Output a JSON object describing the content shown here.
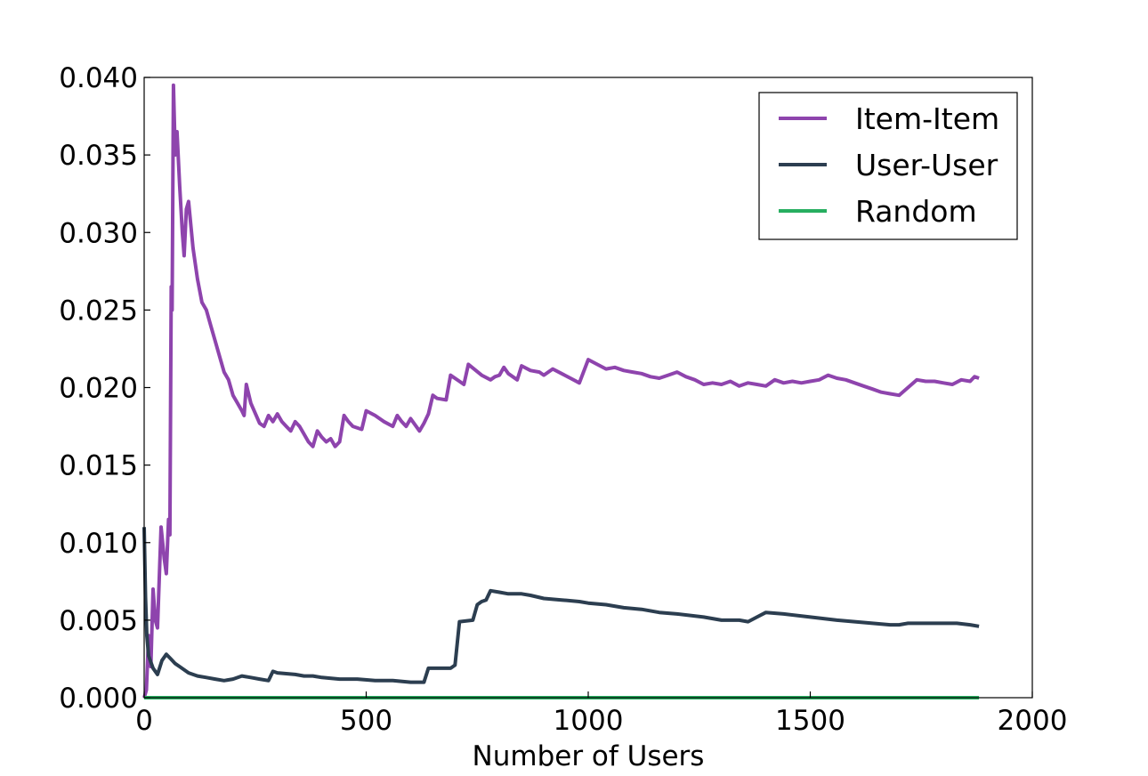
{
  "chart_data": {
    "type": "line",
    "title": "",
    "xlabel": "Number of Users",
    "ylabel": "",
    "xlim": [
      0,
      2000
    ],
    "ylim": [
      0,
      0.04
    ],
    "x_ticks": [
      "0",
      "500",
      "1000",
      "1500",
      "2000"
    ],
    "y_ticks": [
      "0.000",
      "0.005",
      "0.010",
      "0.015",
      "0.020",
      "0.025",
      "0.030",
      "0.035",
      "0.040"
    ],
    "grid": false,
    "legend_position": "top-right",
    "series": [
      {
        "name": "Item-Item",
        "color": "#8e44ad",
        "points": [
          [
            0,
            0
          ],
          [
            5,
            0.0005
          ],
          [
            10,
            0.004
          ],
          [
            15,
            0.002
          ],
          [
            20,
            0.007
          ],
          [
            25,
            0.005
          ],
          [
            30,
            0.0045
          ],
          [
            38,
            0.011
          ],
          [
            45,
            0.009
          ],
          [
            50,
            0.008
          ],
          [
            55,
            0.0115
          ],
          [
            58,
            0.0105
          ],
          [
            61,
            0.0265
          ],
          [
            63,
            0.025
          ],
          [
            66,
            0.0395
          ],
          [
            70,
            0.035
          ],
          [
            74,
            0.0365
          ],
          [
            80,
            0.033
          ],
          [
            86,
            0.03
          ],
          [
            90,
            0.0285
          ],
          [
            95,
            0.0315
          ],
          [
            100,
            0.032
          ],
          [
            110,
            0.029
          ],
          [
            120,
            0.027
          ],
          [
            130,
            0.0255
          ],
          [
            140,
            0.025
          ],
          [
            150,
            0.024
          ],
          [
            160,
            0.023
          ],
          [
            170,
            0.022
          ],
          [
            180,
            0.021
          ],
          [
            190,
            0.0205
          ],
          [
            200,
            0.0195
          ],
          [
            210,
            0.019
          ],
          [
            220,
            0.0185
          ],
          [
            225,
            0.0182
          ],
          [
            230,
            0.0202
          ],
          [
            240,
            0.019
          ],
          [
            260,
            0.0177
          ],
          [
            270,
            0.0175
          ],
          [
            280,
            0.0182
          ],
          [
            290,
            0.0178
          ],
          [
            300,
            0.0183
          ],
          [
            310,
            0.0178
          ],
          [
            320,
            0.0175
          ],
          [
            330,
            0.0172
          ],
          [
            340,
            0.0178
          ],
          [
            350,
            0.0175
          ],
          [
            360,
            0.017
          ],
          [
            370,
            0.0165
          ],
          [
            380,
            0.0162
          ],
          [
            390,
            0.0172
          ],
          [
            400,
            0.0168
          ],
          [
            410,
            0.0165
          ],
          [
            420,
            0.0167
          ],
          [
            430,
            0.0162
          ],
          [
            440,
            0.0165
          ],
          [
            450,
            0.0182
          ],
          [
            460,
            0.0178
          ],
          [
            470,
            0.0175
          ],
          [
            490,
            0.0173
          ],
          [
            500,
            0.0185
          ],
          [
            520,
            0.0182
          ],
          [
            540,
            0.0178
          ],
          [
            560,
            0.0175
          ],
          [
            570,
            0.0182
          ],
          [
            580,
            0.0178
          ],
          [
            590,
            0.0175
          ],
          [
            600,
            0.018
          ],
          [
            620,
            0.0172
          ],
          [
            630,
            0.0177
          ],
          [
            640,
            0.0183
          ],
          [
            650,
            0.0195
          ],
          [
            660,
            0.0193
          ],
          [
            680,
            0.0192
          ],
          [
            690,
            0.0208
          ],
          [
            710,
            0.0204
          ],
          [
            720,
            0.0202
          ],
          [
            730,
            0.0215
          ],
          [
            760,
            0.0208
          ],
          [
            780,
            0.0205
          ],
          [
            790,
            0.0207
          ],
          [
            800,
            0.0208
          ],
          [
            810,
            0.0213
          ],
          [
            820,
            0.0209
          ],
          [
            840,
            0.0205
          ],
          [
            850,
            0.0214
          ],
          [
            870,
            0.0211
          ],
          [
            890,
            0.021
          ],
          [
            900,
            0.0208
          ],
          [
            920,
            0.0212
          ],
          [
            940,
            0.0209
          ],
          [
            960,
            0.0206
          ],
          [
            980,
            0.0203
          ],
          [
            1000,
            0.0218
          ],
          [
            1020,
            0.0215
          ],
          [
            1040,
            0.0212
          ],
          [
            1060,
            0.0213
          ],
          [
            1080,
            0.0211
          ],
          [
            1100,
            0.021
          ],
          [
            1120,
            0.0209
          ],
          [
            1140,
            0.0207
          ],
          [
            1160,
            0.0206
          ],
          [
            1180,
            0.0208
          ],
          [
            1200,
            0.021
          ],
          [
            1220,
            0.0207
          ],
          [
            1240,
            0.0205
          ],
          [
            1260,
            0.0202
          ],
          [
            1280,
            0.0203
          ],
          [
            1300,
            0.0202
          ],
          [
            1320,
            0.0204
          ],
          [
            1340,
            0.0201
          ],
          [
            1360,
            0.0203
          ],
          [
            1380,
            0.0202
          ],
          [
            1400,
            0.0201
          ],
          [
            1420,
            0.0205
          ],
          [
            1440,
            0.0203
          ],
          [
            1460,
            0.0204
          ],
          [
            1480,
            0.0203
          ],
          [
            1500,
            0.0204
          ],
          [
            1520,
            0.0205
          ],
          [
            1540,
            0.0208
          ],
          [
            1560,
            0.0206
          ],
          [
            1580,
            0.0205
          ],
          [
            1600,
            0.0203
          ],
          [
            1620,
            0.0201
          ],
          [
            1640,
            0.0199
          ],
          [
            1660,
            0.0197
          ],
          [
            1680,
            0.0196
          ],
          [
            1700,
            0.0195
          ],
          [
            1720,
            0.02
          ],
          [
            1740,
            0.0205
          ],
          [
            1760,
            0.0204
          ],
          [
            1780,
            0.0204
          ],
          [
            1800,
            0.0203
          ],
          [
            1820,
            0.0202
          ],
          [
            1840,
            0.0205
          ],
          [
            1860,
            0.0204
          ],
          [
            1870,
            0.0207
          ],
          [
            1880,
            0.0206
          ]
        ]
      },
      {
        "name": "User-User",
        "color": "#2c3e50",
        "points": [
          [
            0,
            0.011
          ],
          [
            3,
            0.0065
          ],
          [
            6,
            0.004
          ],
          [
            10,
            0.0027
          ],
          [
            20,
            0.0019
          ],
          [
            30,
            0.0015
          ],
          [
            40,
            0.0024
          ],
          [
            50,
            0.0028
          ],
          [
            60,
            0.0025
          ],
          [
            70,
            0.0022
          ],
          [
            80,
            0.002
          ],
          [
            100,
            0.0016
          ],
          [
            120,
            0.0014
          ],
          [
            140,
            0.0013
          ],
          [
            160,
            0.0012
          ],
          [
            180,
            0.0011
          ],
          [
            200,
            0.0012
          ],
          [
            220,
            0.0014
          ],
          [
            240,
            0.0013
          ],
          [
            260,
            0.0012
          ],
          [
            280,
            0.0011
          ],
          [
            290,
            0.0017
          ],
          [
            300,
            0.0016
          ],
          [
            340,
            0.0015
          ],
          [
            360,
            0.0014
          ],
          [
            380,
            0.0014
          ],
          [
            400,
            0.0013
          ],
          [
            440,
            0.0012
          ],
          [
            480,
            0.0012
          ],
          [
            520,
            0.0011
          ],
          [
            560,
            0.0011
          ],
          [
            600,
            0.001
          ],
          [
            630,
            0.001
          ],
          [
            640,
            0.0019
          ],
          [
            660,
            0.0019
          ],
          [
            690,
            0.0019
          ],
          [
            700,
            0.0021
          ],
          [
            710,
            0.0049
          ],
          [
            740,
            0.005
          ],
          [
            750,
            0.006
          ],
          [
            760,
            0.0062
          ],
          [
            770,
            0.0063
          ],
          [
            780,
            0.0069
          ],
          [
            800,
            0.0068
          ],
          [
            820,
            0.0067
          ],
          [
            850,
            0.0067
          ],
          [
            870,
            0.0066
          ],
          [
            900,
            0.0064
          ],
          [
            940,
            0.0063
          ],
          [
            980,
            0.0062
          ],
          [
            1000,
            0.0061
          ],
          [
            1040,
            0.006
          ],
          [
            1080,
            0.0058
          ],
          [
            1120,
            0.0057
          ],
          [
            1160,
            0.0055
          ],
          [
            1200,
            0.0054
          ],
          [
            1260,
            0.0052
          ],
          [
            1300,
            0.005
          ],
          [
            1340,
            0.005
          ],
          [
            1360,
            0.0049
          ],
          [
            1380,
            0.0052
          ],
          [
            1400,
            0.0055
          ],
          [
            1440,
            0.0054
          ],
          [
            1500,
            0.0052
          ],
          [
            1560,
            0.005
          ],
          [
            1600,
            0.0049
          ],
          [
            1640,
            0.0048
          ],
          [
            1680,
            0.0047
          ],
          [
            1700,
            0.0047
          ],
          [
            1720,
            0.0048
          ],
          [
            1760,
            0.0048
          ],
          [
            1800,
            0.0048
          ],
          [
            1830,
            0.0048
          ],
          [
            1860,
            0.0047
          ],
          [
            1880,
            0.0046
          ]
        ]
      },
      {
        "name": "Random",
        "color": "#27ae60",
        "points": [
          [
            0,
            0
          ],
          [
            1880,
            0
          ]
        ]
      }
    ]
  }
}
